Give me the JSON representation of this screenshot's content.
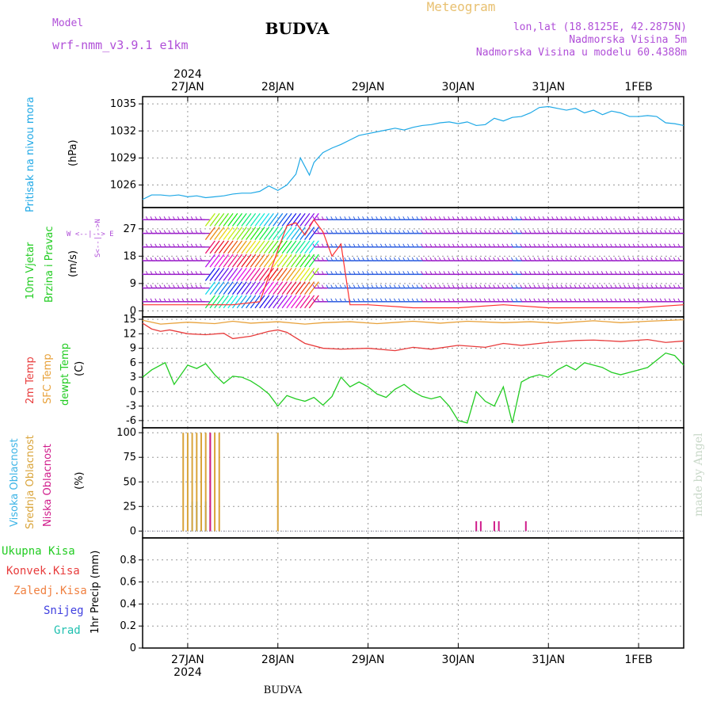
{
  "header": {
    "model_label": "Model",
    "model_name": "wrf-nmm_v3.9.1  e1km",
    "title": "BUDVA",
    "meteogram_label": "Meteogram",
    "coords": "lon,lat (18.8125E, 42.2875N)",
    "elevation": "Nadmorska Visina 5m",
    "model_elevation": "Nadmorska Visina u modelu 60.4388m",
    "year": "2024",
    "bottom_title": "BUDVA",
    "watermark": "made by Angel"
  },
  "colors": {
    "pressure": "#1ea8e6",
    "temp2m": "#e83c3c",
    "sfc": "#e8a23c",
    "dewpt": "#22cc22",
    "cloud_high": "#3cb4e6",
    "cloud_mid": "#d9a43a",
    "cloud_low": "#d01c8b",
    "wind_purple": "#9b1fc9",
    "gust": "#ff3030"
  },
  "chart_data": [
    {
      "type": "line",
      "name": "pressure",
      "ylabels": [
        "Pritisak na nivou mora",
        "(hPa)"
      ],
      "ylim": [
        1023.5,
        1035.8
      ],
      "yticks": [
        1026,
        1029,
        1032,
        1035
      ],
      "xlim": [
        0,
        6
      ],
      "x_ticks": [
        "27JAN",
        "28JAN",
        "29JAN",
        "30JAN",
        "31JAN",
        "1FEB"
      ],
      "series": [
        {
          "x": [
            0,
            0.1,
            0.2,
            0.3,
            0.4,
            0.5,
            0.6,
            0.7,
            0.8,
            0.9,
            1.0,
            1.1,
            1.2,
            1.3,
            1.4,
            1.5,
            1.6,
            1.7,
            1.75,
            1.85,
            1.9,
            2.0,
            2.1,
            2.2,
            2.3,
            2.4,
            2.5,
            2.6,
            2.7,
            2.8,
            2.9,
            3.0,
            3.1,
            3.2,
            3.3,
            3.4,
            3.5,
            3.6,
            3.7,
            3.8,
            3.9,
            4.0,
            4.1,
            4.2,
            4.3,
            4.4,
            4.5,
            4.6,
            4.7,
            4.8,
            4.9,
            5.0,
            5.1,
            5.2,
            5.3,
            5.4,
            5.5,
            5.6,
            5.7,
            5.8,
            5.9,
            6.0
          ],
          "values": [
            1024.4,
            1024.9,
            1024.9,
            1024.8,
            1024.9,
            1024.7,
            1024.8,
            1024.6,
            1024.7,
            1024.8,
            1025.0,
            1025.1,
            1025.1,
            1025.3,
            1025.9,
            1025.4,
            1026.0,
            1027.2,
            1029.0,
            1027.1,
            1028.5,
            1029.6,
            1030.1,
            1030.5,
            1031.0,
            1031.5,
            1031.7,
            1031.9,
            1032.1,
            1032.3,
            1032.1,
            1032.4,
            1032.6,
            1032.7,
            1032.9,
            1033.0,
            1032.8,
            1033.0,
            1032.6,
            1032.7,
            1033.4,
            1033.1,
            1033.5,
            1033.6,
            1034.0,
            1034.6,
            1034.7,
            1034.5,
            1034.3,
            1034.5,
            1034.0,
            1034.3,
            1033.8,
            1034.2,
            1034.0,
            1033.6,
            1033.6,
            1033.7,
            1033.6,
            1032.9,
            1032.8,
            1032.6
          ]
        }
      ]
    },
    {
      "type": "line",
      "name": "wind",
      "ylabels": [
        "10m Vjetar",
        "Brzina i Pravac",
        "(m/s)"
      ],
      "legend_glyph": "W <--|--> E",
      "legend_glyph_v": "S<--|-->N",
      "ylim": [
        -2,
        34
      ],
      "yticks": [
        0,
        9,
        18,
        27
      ],
      "series": [
        {
          "name": "gust",
          "x": [
            0,
            0.5,
            1.0,
            1.3,
            1.5,
            1.6,
            1.7,
            1.8,
            1.9,
            2.0,
            2.1,
            2.2,
            2.3,
            2.5,
            3.0,
            3.5,
            4.0,
            4.5,
            5.0,
            5.5,
            6.0
          ],
          "values": [
            2,
            2,
            2,
            3,
            20,
            28,
            29,
            25,
            30,
            26,
            18,
            22,
            2,
            2,
            1,
            1,
            2,
            1,
            1,
            1,
            2
          ]
        }
      ]
    },
    {
      "type": "line",
      "name": "temperature",
      "ylabels": [
        "2m Temp",
        "SFC Temp",
        "dewpt Temp",
        "(C)"
      ],
      "ylim": [
        -7.5,
        15.5
      ],
      "yticks": [
        -6,
        -3,
        0,
        3,
        6,
        9,
        12,
        15
      ],
      "series": [
        {
          "name": "2m Temp",
          "x": [
            0,
            0.1,
            0.2,
            0.3,
            0.5,
            0.7,
            0.9,
            1.0,
            1.2,
            1.4,
            1.5,
            1.6,
            1.8,
            2.0,
            2.2,
            2.5,
            2.8,
            3.0,
            3.2,
            3.5,
            3.8,
            4.0,
            4.2,
            4.5,
            4.8,
            5.0,
            5.3,
            5.6,
            5.8,
            6.0
          ],
          "values": [
            14.2,
            13.0,
            12.5,
            12.8,
            12.0,
            11.8,
            12.1,
            11.0,
            11.5,
            12.5,
            12.8,
            12.3,
            10.0,
            9.0,
            8.8,
            9.0,
            8.5,
            9.2,
            8.8,
            9.6,
            9.2,
            10.0,
            9.6,
            10.2,
            10.6,
            10.7,
            10.4,
            10.8,
            10.2,
            10.5
          ]
        },
        {
          "name": "SFC Temp",
          "x": [
            0,
            0.2,
            0.5,
            0.8,
            1.0,
            1.2,
            1.5,
            1.8,
            2.0,
            2.3,
            2.6,
            3.0,
            3.3,
            3.6,
            4.0,
            4.3,
            4.6,
            5.0,
            5.3,
            5.6,
            6.0
          ],
          "values": [
            14.8,
            14.0,
            14.4,
            14.1,
            14.6,
            14.2,
            14.5,
            14.0,
            14.3,
            14.5,
            14.1,
            14.6,
            14.2,
            14.6,
            14.3,
            14.5,
            14.2,
            14.7,
            14.3,
            14.6,
            14.9
          ]
        },
        {
          "name": "dewpt Temp",
          "x": [
            0,
            0.1,
            0.25,
            0.35,
            0.5,
            0.6,
            0.7,
            0.8,
            0.9,
            1.0,
            1.1,
            1.2,
            1.3,
            1.4,
            1.5,
            1.6,
            1.7,
            1.8,
            1.9,
            2.0,
            2.1,
            2.2,
            2.3,
            2.4,
            2.5,
            2.6,
            2.7,
            2.8,
            2.9,
            3.0,
            3.1,
            3.2,
            3.3,
            3.4,
            3.5,
            3.6,
            3.7,
            3.8,
            3.9,
            4.0,
            4.1,
            4.2,
            4.3,
            4.4,
            4.5,
            4.6,
            4.7,
            4.8,
            4.9,
            5.0,
            5.1,
            5.2,
            5.3,
            5.4,
            5.5,
            5.6,
            5.7,
            5.8,
            5.9,
            6.0
          ],
          "values": [
            3.0,
            4.5,
            6.0,
            1.5,
            5.5,
            4.8,
            5.8,
            3.5,
            1.7,
            3.2,
            3.0,
            2.2,
            1.0,
            -0.5,
            -3.0,
            -0.8,
            -1.5,
            -2.0,
            -1.2,
            -2.8,
            -1.0,
            3.0,
            1.0,
            2.0,
            1.0,
            -0.5,
            -1.2,
            0.5,
            1.5,
            0.0,
            -1.0,
            -1.5,
            -1.0,
            -3.0,
            -6.0,
            -6.5,
            0.0,
            -2.0,
            -3.0,
            1.0,
            -6.5,
            2.0,
            3.0,
            3.5,
            3.0,
            4.5,
            5.5,
            4.5,
            6.0,
            5.5,
            5.0,
            4.0,
            3.5,
            4.0,
            4.5,
            5.0,
            6.5,
            8.0,
            7.5,
            5.5
          ]
        }
      ]
    },
    {
      "type": "bar",
      "name": "cloudiness",
      "ylabels": [
        "Visoka Oblacnost",
        "Srednja Oblacnost",
        "Niska Oblacnost",
        "(%)"
      ],
      "ylim": [
        -7,
        105
      ],
      "yticks": [
        0,
        25,
        50,
        75,
        100
      ],
      "series": [
        {
          "name": "Visoka Oblacnost",
          "x": [
            0.05,
            0.1,
            0.15,
            0.2
          ],
          "values": [
            30,
            30,
            30,
            30
          ]
        },
        {
          "name": "Srednja Oblacnost",
          "x": [
            -0.05,
            0.0,
            0.05,
            0.1,
            0.15,
            0.2,
            0.25,
            0.3,
            0.35,
            1.0
          ],
          "values": [
            100,
            100,
            100,
            100,
            100,
            100,
            100,
            100,
            100,
            100
          ]
        },
        {
          "name": "Niska Oblacnost",
          "x": [
            0.25,
            3.2,
            3.25,
            3.4,
            3.45,
            3.75
          ],
          "values": [
            100,
            10,
            10,
            10,
            10,
            10
          ]
        }
      ]
    },
    {
      "type": "bar",
      "name": "precipitation",
      "ylabels": [
        "Ukupna Kisa",
        "Konvek.Kisa",
        "Zaledj.Kisa",
        "Snijeg",
        "Grad",
        "1hr Precip (mm)"
      ],
      "ylim": [
        0,
        1.0
      ],
      "yticks": [
        0,
        0.2,
        0.4,
        0.6,
        0.8
      ],
      "series": []
    }
  ]
}
